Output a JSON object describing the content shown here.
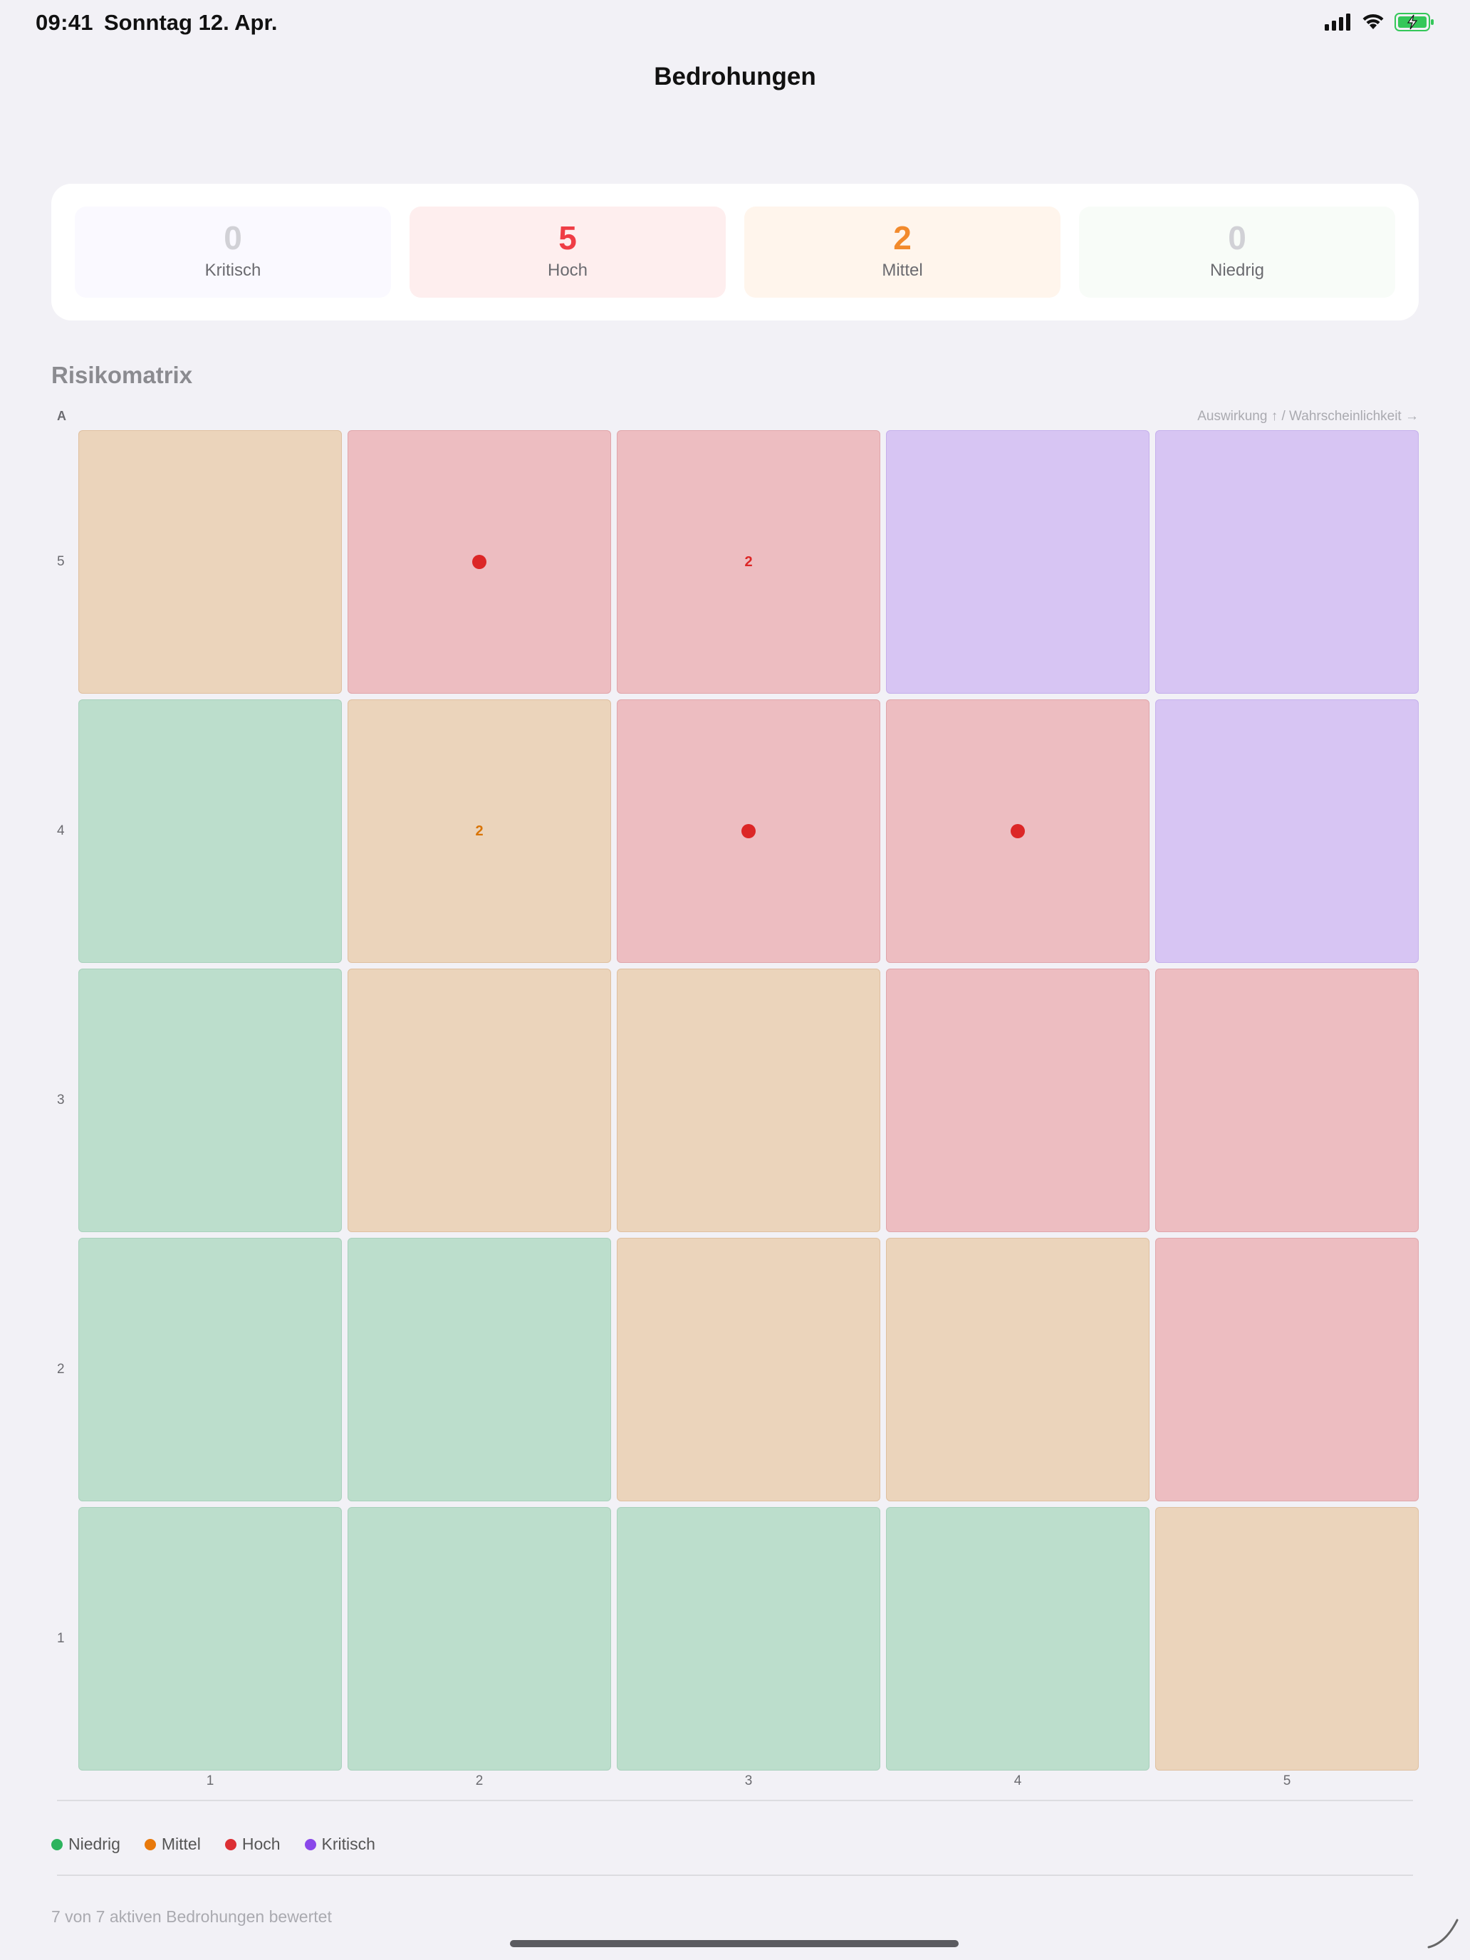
{
  "status_bar": {
    "time": "09:41",
    "date": "Sonntag 12. Apr."
  },
  "nav": {
    "title": "Bedrohungen"
  },
  "summary": [
    {
      "count": "0",
      "label": "Kritisch",
      "color": "#d1d1d6",
      "bg": "#faf9ff"
    },
    {
      "count": "5",
      "label": "Hoch",
      "color": "#ef3d45",
      "bg": "#feeeee"
    },
    {
      "count": "2",
      "label": "Mittel",
      "color": "#f28a2c",
      "bg": "#fff5ec"
    },
    {
      "count": "0",
      "label": "Niedrig",
      "color": "#d1d1d6",
      "bg": "#f8fcf8"
    }
  ],
  "matrix": {
    "title": "Risikomatrix",
    "corner_label": "A",
    "axis_hint": "Auswirkung ↑ / Wahrscheinlichkeit →",
    "y_labels": [
      "5",
      "4",
      "3",
      "2",
      "1"
    ],
    "x_labels": [
      "1",
      "2",
      "3",
      "4",
      "5"
    ],
    "rows": [
      {
        "y": "5",
        "cells": [
          {
            "level": "med"
          },
          {
            "level": "high",
            "dot": true
          },
          {
            "level": "high",
            "count": "2"
          },
          {
            "level": "crit"
          },
          {
            "level": "crit"
          }
        ]
      },
      {
        "y": "4",
        "cells": [
          {
            "level": "low"
          },
          {
            "level": "med",
            "count": "2"
          },
          {
            "level": "high",
            "dot": true
          },
          {
            "level": "high",
            "dot": true
          },
          {
            "level": "crit"
          }
        ]
      },
      {
        "y": "3",
        "cells": [
          {
            "level": "low"
          },
          {
            "level": "med"
          },
          {
            "level": "med"
          },
          {
            "level": "high"
          },
          {
            "level": "high"
          }
        ]
      },
      {
        "y": "2",
        "cells": [
          {
            "level": "low"
          },
          {
            "level": "low"
          },
          {
            "level": "med"
          },
          {
            "level": "med"
          },
          {
            "level": "high"
          }
        ]
      },
      {
        "y": "1",
        "cells": [
          {
            "level": "low"
          },
          {
            "level": "low"
          },
          {
            "level": "low"
          },
          {
            "level": "low"
          },
          {
            "level": "med"
          }
        ]
      }
    ],
    "level_text_colors": {
      "low": "#2a9d5c",
      "med": "#d97406",
      "high": "#dc2626",
      "crit": "#7c3aed"
    }
  },
  "legend": [
    {
      "label": "Niedrig",
      "color": "#2db35d"
    },
    {
      "label": "Mittel",
      "color": "#e8790b"
    },
    {
      "label": "Hoch",
      "color": "#dc2f34"
    },
    {
      "label": "Kritisch",
      "color": "#8a48ea"
    }
  ],
  "footer": {
    "text": "7 von 7 aktiven Bedrohungen bewertet"
  }
}
